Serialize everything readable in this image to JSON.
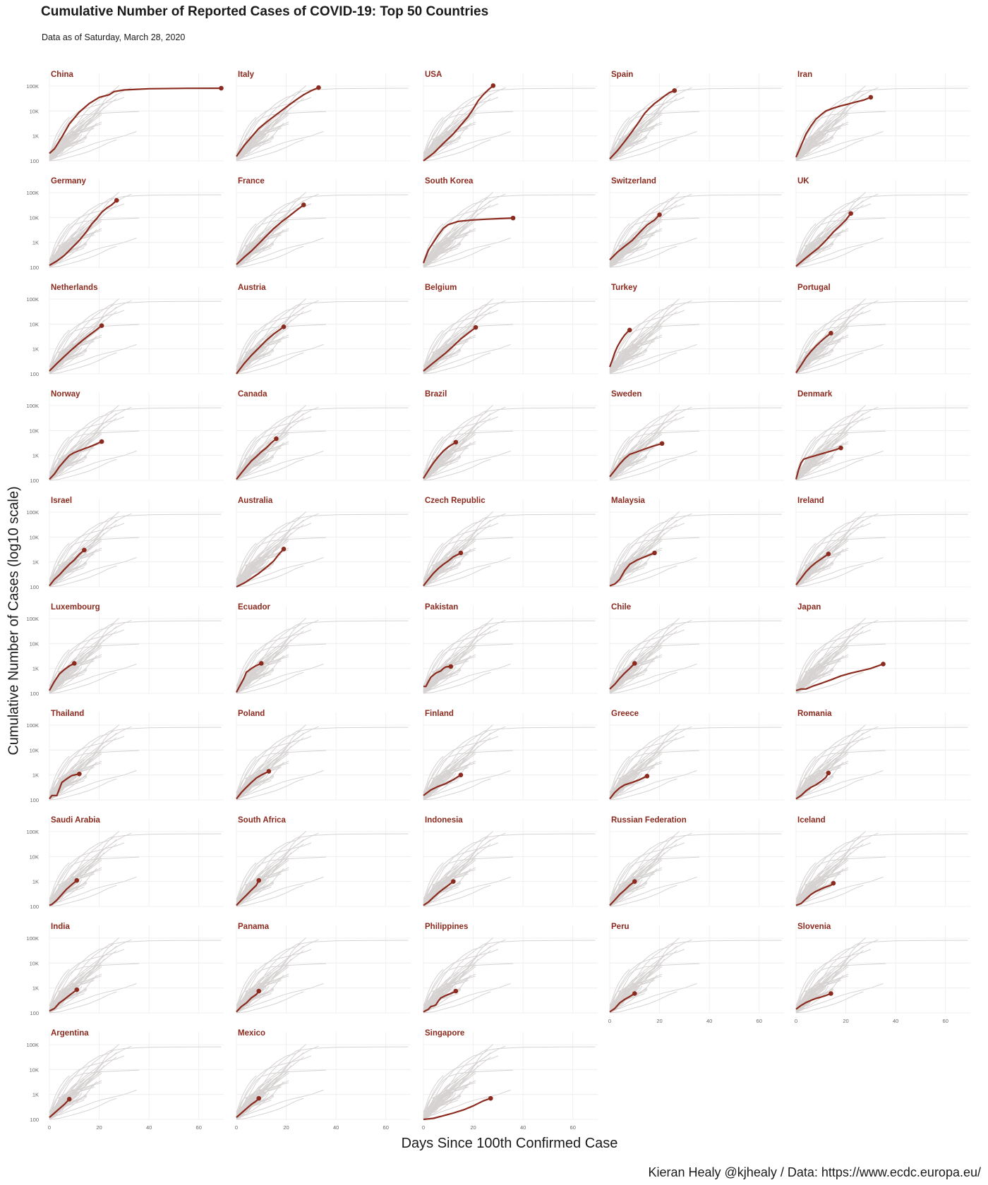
{
  "chart_data": {
    "type": "line",
    "title": "Cumulative Number of Reported Cases of COVID-19: Top 50 Countries",
    "subtitle": "Data as of Saturday, March 28, 2020",
    "xlabel": "Days Since 100th Confirmed Case",
    "ylabel": "Cumulative Number of Cases (log10 scale)",
    "caption": "Kieran Healy @kjhealy / Data: https://www.ecdc.europa.eu/",
    "y_scale": "log10",
    "ylim": [
      100,
      100000
    ],
    "xlim": [
      0,
      70
    ],
    "x_ticks": [
      0,
      20,
      40,
      60
    ],
    "x_tick_labels": [
      "0",
      "20",
      "40",
      "60"
    ],
    "y_ticks": [
      100,
      1000,
      10000,
      100000
    ],
    "y_tick_labels": [
      "100",
      "1K",
      "10K",
      "100K"
    ],
    "grid": true,
    "facets": {
      "ncol": 5,
      "nrow": 11
    },
    "highlight_color": "#8b2a1e",
    "background_color": "#d6d2d2",
    "series": [
      {
        "name": "China",
        "x": [
          0,
          2,
          5,
          8,
          12,
          16,
          20,
          24,
          26,
          30,
          40,
          55,
          69
        ],
        "y": [
          200,
          300,
          900,
          3000,
          9000,
          20000,
          35000,
          45000,
          60000,
          70000,
          78000,
          81000,
          81900
        ]
      },
      {
        "name": "Italy",
        "x": [
          0,
          3,
          6,
          9,
          12,
          15,
          18,
          21,
          24,
          27,
          30,
          33
        ],
        "y": [
          150,
          400,
          900,
          2000,
          3500,
          6000,
          10000,
          17000,
          28000,
          45000,
          65000,
          86500
        ]
      },
      {
        "name": "USA",
        "x": [
          0,
          4,
          8,
          12,
          16,
          18,
          20,
          22,
          24,
          26,
          28
        ],
        "y": [
          100,
          200,
          500,
          1200,
          3500,
          6000,
          12000,
          26000,
          45000,
          70000,
          104000
        ]
      },
      {
        "name": "Spain",
        "x": [
          0,
          3,
          6,
          9,
          12,
          14,
          16,
          18,
          20,
          22,
          24,
          26
        ],
        "y": [
          120,
          250,
          600,
          1500,
          4000,
          8000,
          13000,
          20000,
          28000,
          40000,
          55000,
          65700
        ]
      },
      {
        "name": "Iran",
        "x": [
          0,
          2,
          4,
          6,
          8,
          10,
          12,
          15,
          18,
          21,
          24,
          27,
          30
        ],
        "y": [
          140,
          400,
          1200,
          2500,
          4700,
          7000,
          10000,
          13000,
          16000,
          19000,
          23000,
          27000,
          35400
        ]
      },
      {
        "name": "Germany",
        "x": [
          0,
          3,
          6,
          9,
          12,
          15,
          17,
          19,
          21,
          23,
          25,
          27
        ],
        "y": [
          120,
          180,
          300,
          600,
          1200,
          2800,
          5500,
          9000,
          16000,
          24000,
          32000,
          48600
        ]
      },
      {
        "name": "France",
        "x": [
          0,
          3,
          6,
          9,
          12,
          15,
          18,
          21,
          24,
          27
        ],
        "y": [
          130,
          250,
          450,
          900,
          1800,
          3600,
          6500,
          11000,
          19000,
          32000
        ]
      },
      {
        "name": "South Korea",
        "x": [
          0,
          2,
          4,
          6,
          8,
          10,
          14,
          20,
          25,
          30,
          36
        ],
        "y": [
          150,
          500,
          1000,
          2000,
          3700,
          5200,
          7000,
          8000,
          8500,
          9000,
          9500
        ]
      },
      {
        "name": "Switzerland",
        "x": [
          0,
          3,
          6,
          9,
          12,
          15,
          18,
          20
        ],
        "y": [
          200,
          400,
          700,
          1200,
          2500,
          5000,
          8000,
          12900
        ]
      },
      {
        "name": "UK",
        "x": [
          0,
          3,
          6,
          9,
          12,
          15,
          18,
          20,
          22
        ],
        "y": [
          110,
          200,
          350,
          600,
          1200,
          2600,
          5000,
          8000,
          14500
        ]
      },
      {
        "name": "Netherlands",
        "x": [
          0,
          3,
          6,
          9,
          12,
          15,
          18,
          21
        ],
        "y": [
          130,
          260,
          500,
          950,
          1700,
          3000,
          5000,
          8600
        ]
      },
      {
        "name": "Austria",
        "x": [
          0,
          3,
          6,
          9,
          12,
          15,
          18,
          19
        ],
        "y": [
          100,
          250,
          550,
          1100,
          2200,
          4000,
          6500,
          7700
        ]
      },
      {
        "name": "Belgium",
        "x": [
          0,
          3,
          6,
          9,
          12,
          15,
          18,
          21
        ],
        "y": [
          130,
          230,
          400,
          700,
          1300,
          2500,
          4300,
          7300
        ]
      },
      {
        "name": "Turkey",
        "x": [
          0,
          1,
          2,
          3,
          4,
          5,
          6,
          7,
          8
        ],
        "y": [
          190,
          350,
          700,
          1200,
          1800,
          2600,
          3600,
          4600,
          5700
        ]
      },
      {
        "name": "Portugal",
        "x": [
          0,
          2,
          4,
          6,
          8,
          10,
          12,
          14
        ],
        "y": [
          110,
          220,
          450,
          800,
          1300,
          2000,
          3000,
          4300
        ]
      },
      {
        "name": "Norway",
        "x": [
          0,
          2,
          4,
          6,
          8,
          10,
          13,
          16,
          19,
          21
        ],
        "y": [
          110,
          180,
          350,
          600,
          1000,
          1300,
          1700,
          2200,
          2900,
          3600
        ]
      },
      {
        "name": "Canada",
        "x": [
          0,
          2,
          4,
          6,
          8,
          10,
          12,
          14,
          16
        ],
        "y": [
          110,
          200,
          350,
          600,
          900,
          1400,
          2000,
          3200,
          4700
        ]
      },
      {
        "name": "Brazil",
        "x": [
          0,
          2,
          4,
          6,
          8,
          10,
          13
        ],
        "y": [
          120,
          250,
          500,
          900,
          1500,
          2200,
          3400
        ]
      },
      {
        "name": "Sweden",
        "x": [
          0,
          2,
          4,
          6,
          8,
          11,
          14,
          17,
          21
        ],
        "y": [
          140,
          250,
          450,
          750,
          1100,
          1400,
          1800,
          2300,
          3000
        ]
      },
      {
        "name": "Denmark",
        "x": [
          0,
          1,
          2,
          3,
          5,
          8,
          12,
          16,
          18
        ],
        "y": [
          110,
          260,
          500,
          700,
          820,
          1000,
          1300,
          1700,
          2000
        ]
      },
      {
        "name": "Israel",
        "x": [
          0,
          2,
          4,
          6,
          8,
          10,
          12,
          14
        ],
        "y": [
          110,
          200,
          300,
          500,
          800,
          1200,
          2000,
          3000
        ]
      },
      {
        "name": "Australia",
        "x": [
          0,
          3,
          6,
          9,
          12,
          15,
          17,
          19
        ],
        "y": [
          100,
          140,
          220,
          350,
          600,
          1100,
          2000,
          3300
        ]
      },
      {
        "name": "Czech Republic",
        "x": [
          0,
          2,
          4,
          6,
          8,
          10,
          12,
          15
        ],
        "y": [
          110,
          200,
          350,
          550,
          800,
          1100,
          1600,
          2300
        ]
      },
      {
        "name": "Malaysia",
        "x": [
          0,
          2,
          4,
          6,
          8,
          11,
          14,
          18
        ],
        "y": [
          110,
          130,
          200,
          450,
          800,
          1200,
          1600,
          2300
        ]
      },
      {
        "name": "Ireland",
        "x": [
          0,
          2,
          4,
          6,
          8,
          10,
          13
        ],
        "y": [
          120,
          220,
          400,
          650,
          950,
          1300,
          2100
        ]
      },
      {
        "name": "Luxembourg",
        "x": [
          0,
          2,
          4,
          6,
          8,
          10
        ],
        "y": [
          130,
          300,
          600,
          900,
          1250,
          1600
        ]
      },
      {
        "name": "Ecuador",
        "x": [
          0,
          1,
          2,
          3,
          4,
          6,
          8,
          10
        ],
        "y": [
          110,
          170,
          260,
          400,
          700,
          1000,
          1300,
          1600
        ]
      },
      {
        "name": "Pakistan",
        "x": [
          0,
          1,
          2,
          3,
          5,
          7,
          8,
          9,
          11
        ],
        "y": [
          190,
          190,
          300,
          450,
          650,
          800,
          1000,
          1150,
          1200
        ]
      },
      {
        "name": "Chile",
        "x": [
          0,
          2,
          4,
          6,
          8,
          10
        ],
        "y": [
          150,
          230,
          400,
          650,
          1000,
          1600
        ]
      },
      {
        "name": "Japan",
        "x": [
          0,
          2,
          4,
          7,
          10,
          14,
          18,
          22,
          26,
          30,
          35
        ],
        "y": [
          130,
          150,
          150,
          200,
          250,
          350,
          500,
          650,
          800,
          1000,
          1500
        ]
      },
      {
        "name": "Thailand",
        "x": [
          0,
          1,
          2,
          3,
          5,
          7,
          9,
          11,
          12
        ],
        "y": [
          110,
          150,
          150,
          150,
          500,
          700,
          950,
          1050,
          1100
        ]
      },
      {
        "name": "Poland",
        "x": [
          0,
          2,
          4,
          6,
          8,
          10,
          13
        ],
        "y": [
          110,
          200,
          320,
          500,
          750,
          1000,
          1400
        ]
      },
      {
        "name": "Finland",
        "x": [
          0,
          3,
          6,
          9,
          12,
          15
        ],
        "y": [
          150,
          250,
          350,
          450,
          650,
          1000
        ]
      },
      {
        "name": "Greece",
        "x": [
          0,
          2,
          4,
          6,
          9,
          12,
          15
        ],
        "y": [
          110,
          200,
          300,
          400,
          500,
          650,
          900
        ]
      },
      {
        "name": "Romania",
        "x": [
          0,
          2,
          4,
          6,
          8,
          10,
          12,
          13
        ],
        "y": [
          110,
          150,
          230,
          320,
          400,
          550,
          800,
          1200
        ]
      },
      {
        "name": "Saudi Arabia",
        "x": [
          0,
          1,
          3,
          5,
          7,
          9,
          11
        ],
        "y": [
          110,
          120,
          180,
          300,
          500,
          750,
          1100
        ]
      },
      {
        "name": "South Africa",
        "x": [
          0,
          2,
          4,
          6,
          8,
          9
        ],
        "y": [
          110,
          180,
          280,
          450,
          700,
          1100
        ]
      },
      {
        "name": "Indonesia",
        "x": [
          0,
          2,
          4,
          6,
          8,
          10,
          12
        ],
        "y": [
          110,
          150,
          230,
          350,
          500,
          700,
          1000
        ]
      },
      {
        "name": "Russian Federation",
        "x": [
          0,
          2,
          4,
          6,
          8,
          10
        ],
        "y": [
          110,
          180,
          300,
          450,
          700,
          1000
        ]
      },
      {
        "name": "Iceland",
        "x": [
          0,
          2,
          4,
          6,
          8,
          11,
          14,
          15
        ],
        "y": [
          110,
          130,
          200,
          300,
          400,
          550,
          700,
          850
        ]
      },
      {
        "name": "India",
        "x": [
          0,
          2,
          4,
          6,
          8,
          11
        ],
        "y": [
          120,
          150,
          250,
          350,
          500,
          850
        ]
      },
      {
        "name": "Panama",
        "x": [
          0,
          2,
          4,
          6,
          8,
          9
        ],
        "y": [
          110,
          180,
          250,
          400,
          550,
          750
        ]
      },
      {
        "name": "Philippines",
        "x": [
          0,
          2,
          3,
          4,
          5,
          6,
          7,
          9,
          11,
          13
        ],
        "y": [
          110,
          140,
          180,
          190,
          210,
          300,
          400,
          500,
          600,
          750
        ]
      },
      {
        "name": "Peru",
        "x": [
          0,
          2,
          4,
          6,
          8,
          10
        ],
        "y": [
          110,
          150,
          250,
          350,
          450,
          600
        ]
      },
      {
        "name": "Slovenia",
        "x": [
          0,
          2,
          4,
          6,
          8,
          10,
          12,
          14
        ],
        "y": [
          140,
          200,
          260,
          320,
          380,
          430,
          500,
          600
        ]
      },
      {
        "name": "Argentina",
        "x": [
          0,
          2,
          4,
          6,
          8
        ],
        "y": [
          120,
          180,
          270,
          400,
          650
        ]
      },
      {
        "name": "Mexico",
        "x": [
          0,
          2,
          4,
          6,
          8,
          9
        ],
        "y": [
          120,
          180,
          270,
          400,
          550,
          700
        ]
      },
      {
        "name": "Singapore",
        "x": [
          0,
          4,
          8,
          12,
          16,
          20,
          24,
          27
        ],
        "y": [
          100,
          110,
          140,
          180,
          240,
          350,
          550,
          700
        ]
      }
    ]
  }
}
